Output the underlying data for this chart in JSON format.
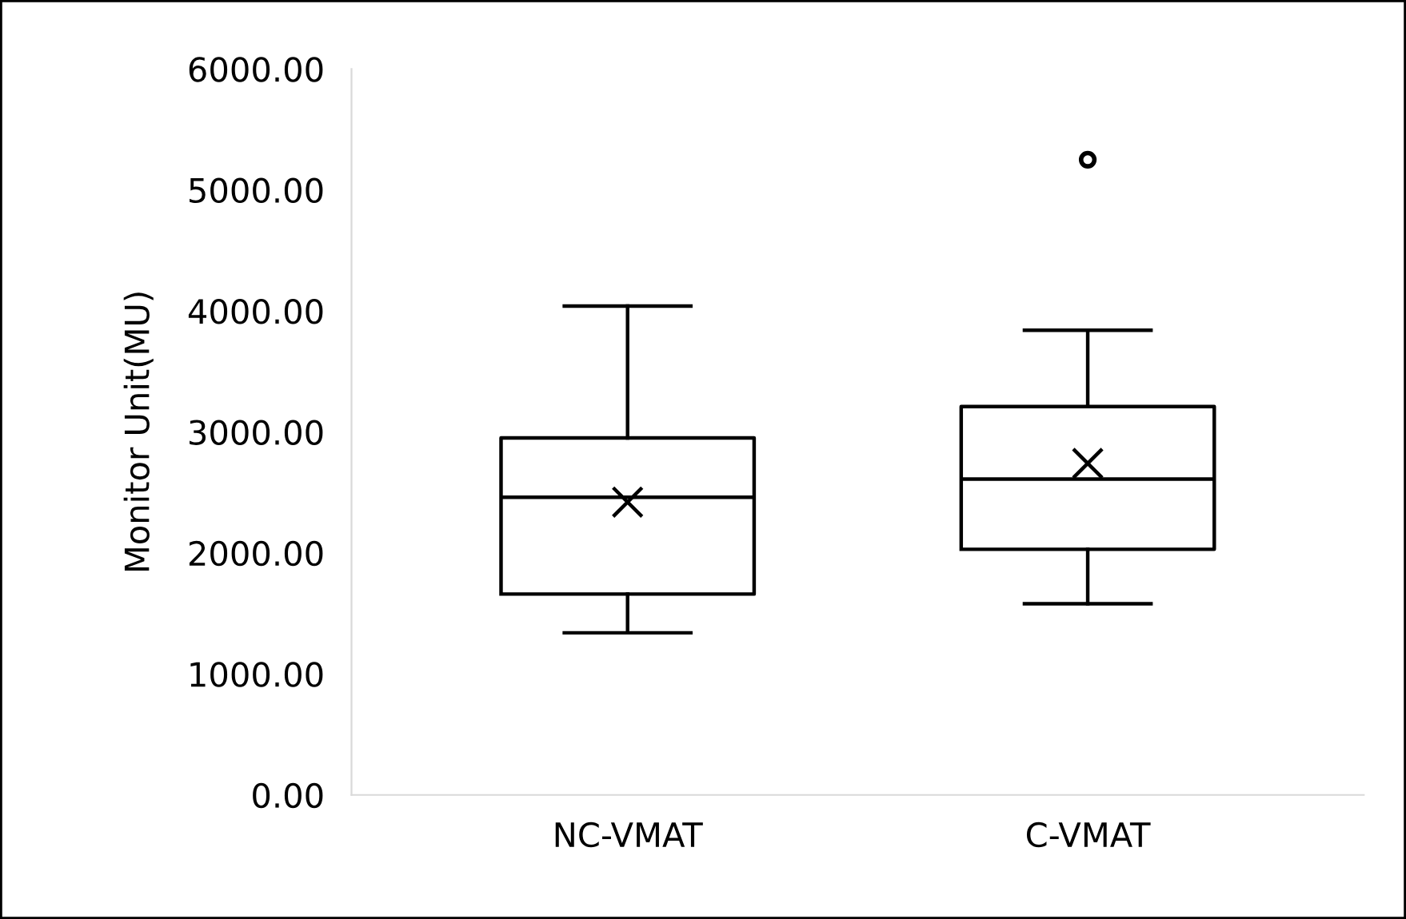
{
  "chart_data": {
    "type": "box",
    "ylabel": "Monitor Unit(MU)",
    "categories": [
      "NC-VMAT",
      "C-VMAT"
    ],
    "boxes": [
      {
        "low": 1340,
        "q1": 1660,
        "median": 2460,
        "q3": 2950,
        "high": 4040,
        "mean": 2420
      },
      {
        "low": 1580,
        "q1": 2030,
        "median": 2610,
        "q3": 3210,
        "high": 3840,
        "mean": 2740,
        "outliers": [
          5250
        ]
      }
    ],
    "color": "#000000",
    "ylim": [
      0,
      6000
    ],
    "yticks": [
      {
        "value": 0,
        "label": "0.00"
      },
      {
        "value": 1000,
        "label": "1000.00"
      },
      {
        "value": 2000,
        "label": "2000.00"
      },
      {
        "value": 3000,
        "label": "3000.00"
      },
      {
        "value": 4000,
        "label": "4000.00"
      },
      {
        "value": 5000,
        "label": "5000.00"
      },
      {
        "value": 6000,
        "label": "6000.00"
      }
    ],
    "grid": false,
    "legend": false
  }
}
